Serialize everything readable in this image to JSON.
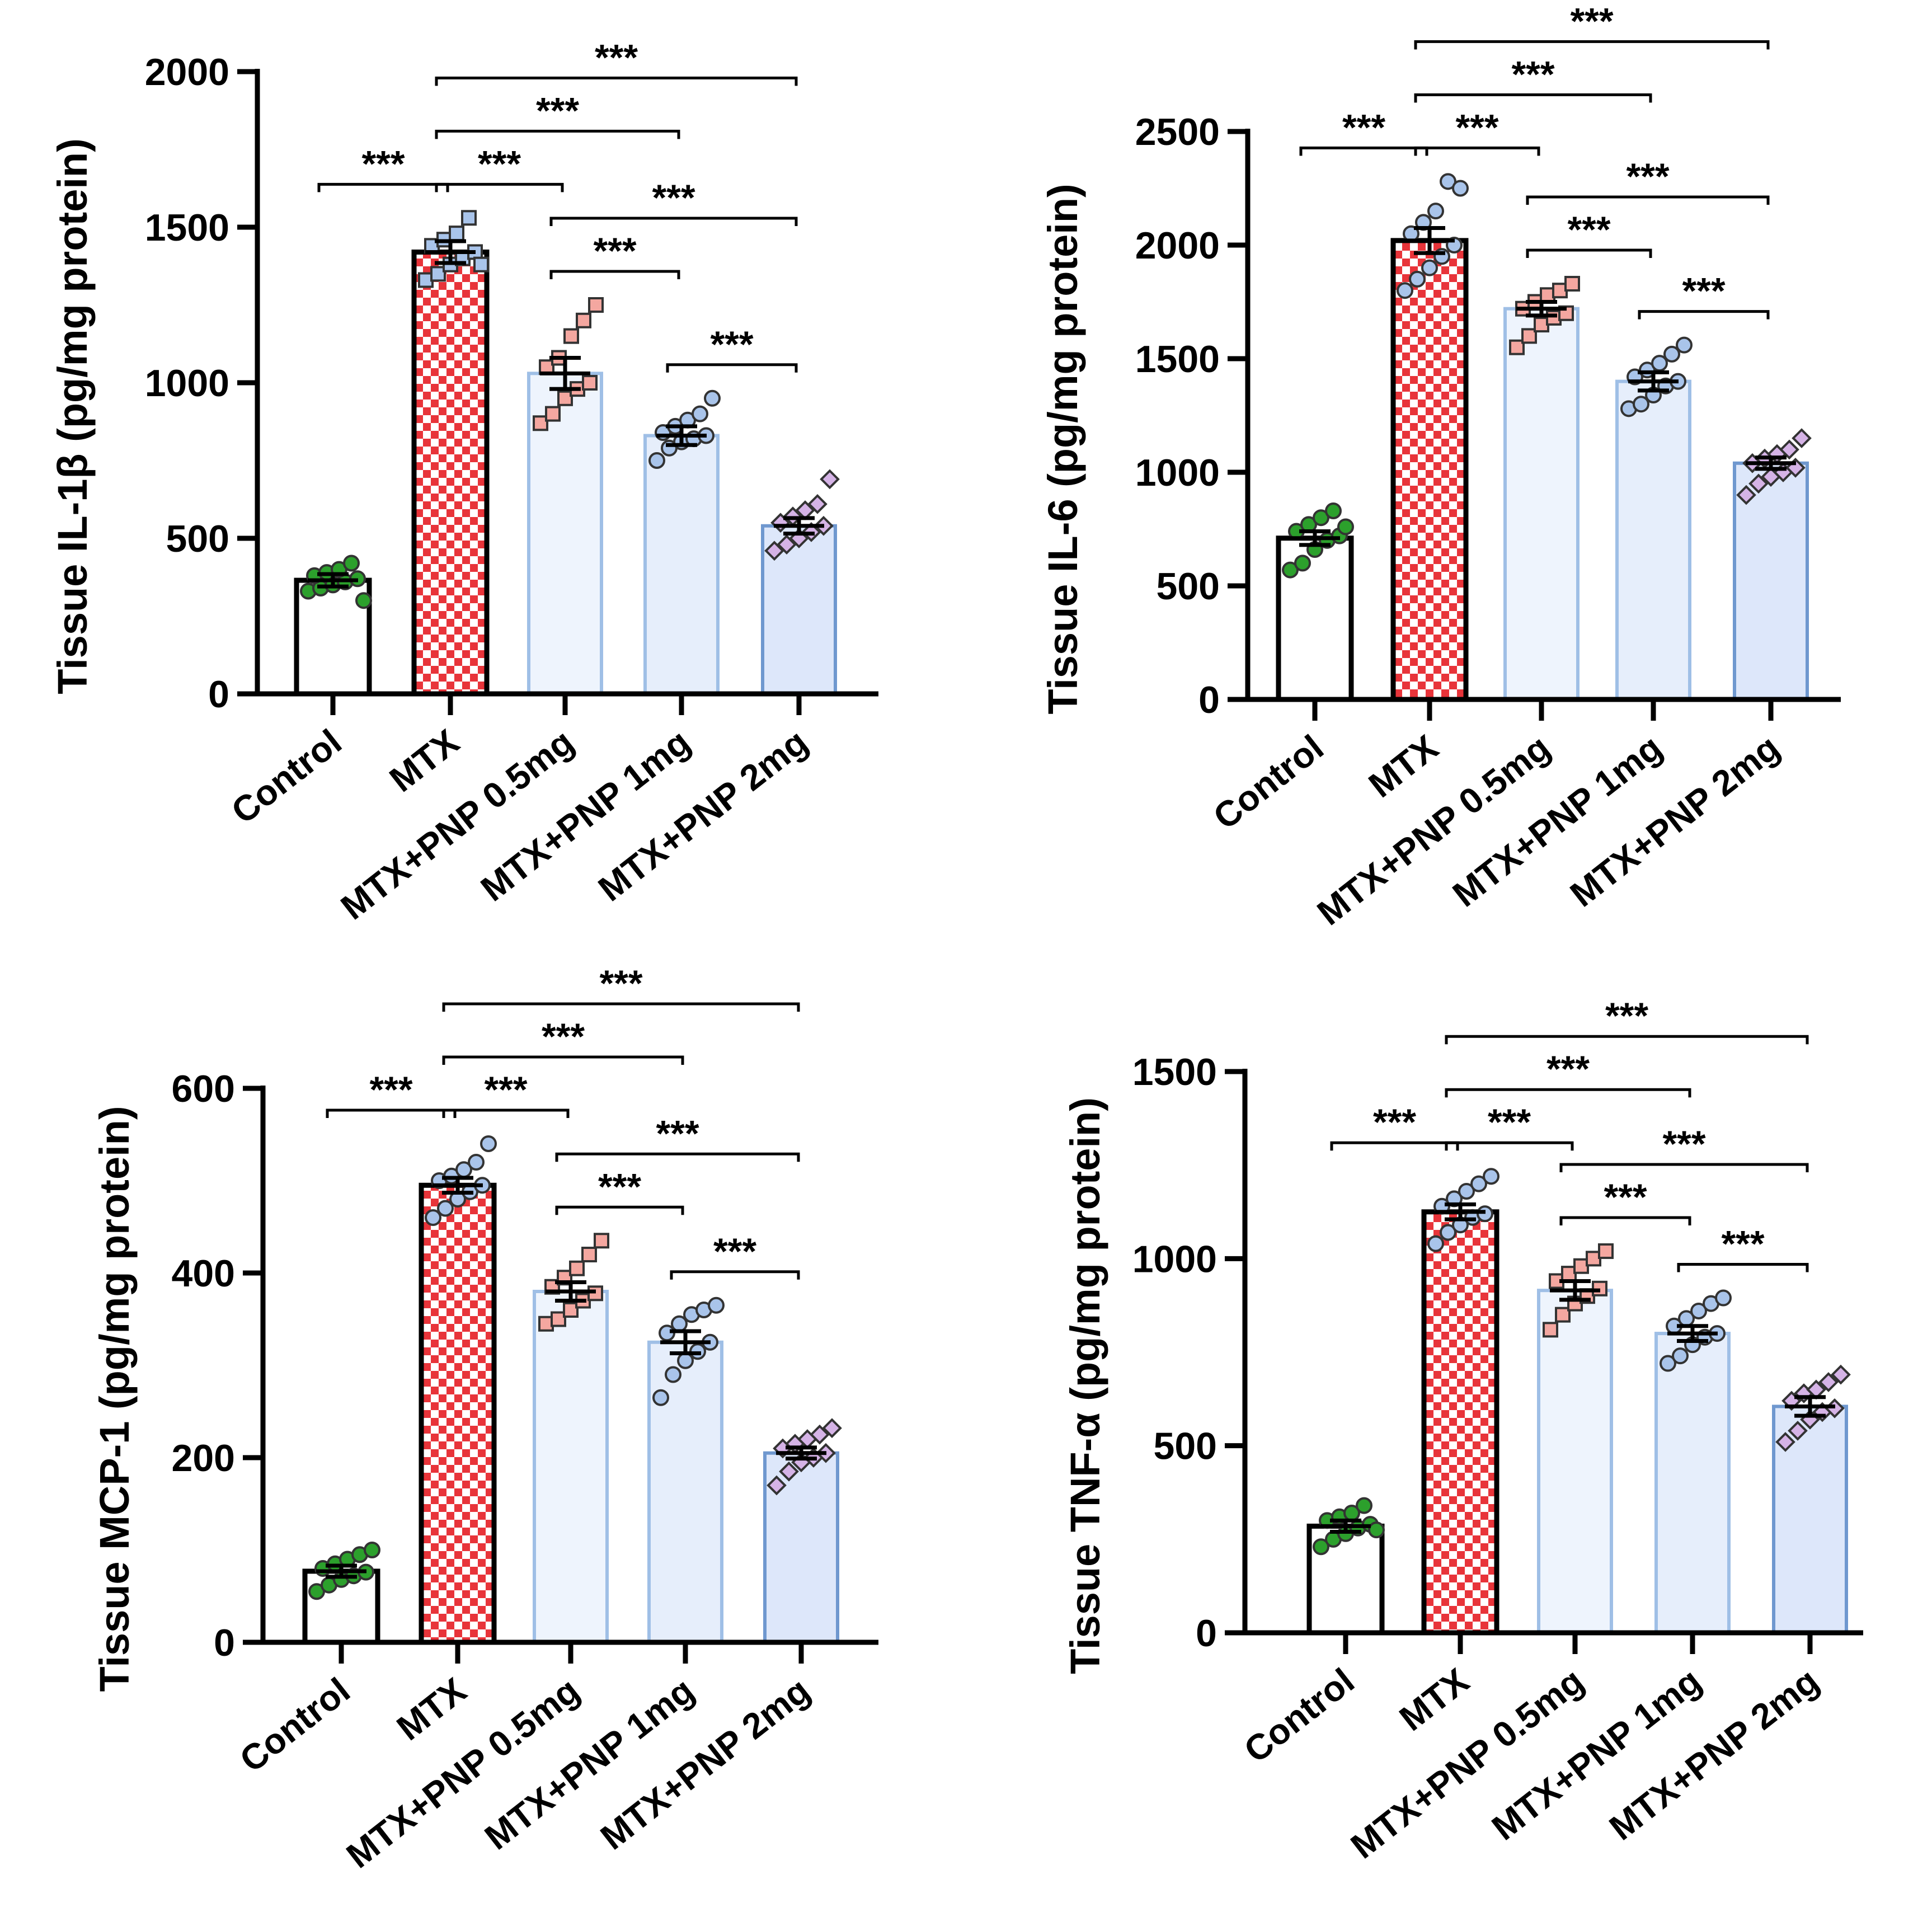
{
  "colors": {
    "control": "#ffffff",
    "mtx": "#e8343a",
    "pnp05": "#eef4fd",
    "pnp1": "#e6eefb",
    "pnp2": "#dde7fa",
    "pnp_edge": "#9fbfe6",
    "control_dot": "#2ca02c",
    "mtx_dot": "#a9c4ea",
    "pnp05_dot": "#f4a7a0",
    "pnp1_dot": "#a9c4ea",
    "pnp2_dot": "#d5b3e6"
  },
  "chart_data": [
    {
      "type": "bar",
      "title": "",
      "ylabel": "Tissue IL-1β (pg/mg protein)",
      "categories": [
        "Control",
        "MTX",
        "MTX+PNP 0.5mg",
        "MTX+PNP 1mg",
        "MTX+PNP 2mg"
      ],
      "values": [
        365,
        1420,
        1030,
        830,
        540
      ],
      "sem": [
        20,
        35,
        50,
        30,
        25
      ],
      "ylim": [
        0,
        2000
      ],
      "yticks": [
        0,
        500,
        1000,
        1500,
        2000
      ],
      "points": [
        [
          330,
          340,
          350,
          360,
          370,
          380,
          390,
          400,
          420,
          300
        ],
        [
          1330,
          1350,
          1380,
          1400,
          1420,
          1440,
          1460,
          1480,
          1530,
          1380
        ],
        [
          870,
          900,
          950,
          980,
          1000,
          1050,
          1080,
          1150,
          1200,
          1250
        ],
        [
          750,
          790,
          810,
          820,
          830,
          840,
          860,
          880,
          900,
          950
        ],
        [
          460,
          480,
          500,
          520,
          540,
          550,
          570,
          590,
          610,
          690
        ]
      ],
      "markers": [
        "circle",
        "square",
        "square",
        "circle",
        "diamond"
      ],
      "comparisons": [
        {
          "from": 0,
          "to": 1,
          "label": "***"
        },
        {
          "from": 1,
          "to": 2,
          "label": "***"
        },
        {
          "from": 1,
          "to": 3,
          "label": "***"
        },
        {
          "from": 1,
          "to": 4,
          "label": "***"
        },
        {
          "from": 2,
          "to": 3,
          "label": "***"
        },
        {
          "from": 2,
          "to": 4,
          "label": "***"
        },
        {
          "from": 3,
          "to": 4,
          "label": "***"
        }
      ]
    },
    {
      "type": "bar",
      "title": "",
      "ylabel": "Tissue IL-6 (pg/mg protein)",
      "categories": [
        "Control",
        "MTX",
        "MTX+PNP 0.5mg",
        "MTX+PNP 1mg",
        "MTX+PNP 2mg"
      ],
      "values": [
        710,
        2020,
        1720,
        1400,
        1040
      ],
      "sem": [
        30,
        55,
        30,
        40,
        25
      ],
      "ylim": [
        0,
        2500
      ],
      "yticks": [
        0,
        500,
        1000,
        1500,
        2000,
        2500
      ],
      "points": [
        [
          570,
          600,
          660,
          700,
          720,
          740,
          770,
          800,
          830,
          760
        ],
        [
          1800,
          1850,
          1900,
          1950,
          2000,
          2050,
          2100,
          2150,
          2280,
          2250
        ],
        [
          1550,
          1600,
          1650,
          1680,
          1700,
          1720,
          1750,
          1780,
          1800,
          1830
        ],
        [
          1280,
          1300,
          1340,
          1380,
          1400,
          1420,
          1450,
          1480,
          1520,
          1560
        ],
        [
          900,
          950,
          980,
          1000,
          1020,
          1040,
          1060,
          1080,
          1100,
          1150
        ]
      ],
      "markers": [
        "circle",
        "circle",
        "square",
        "circle",
        "diamond"
      ],
      "comparisons": [
        {
          "from": 0,
          "to": 1,
          "label": "***"
        },
        {
          "from": 1,
          "to": 2,
          "label": "***"
        },
        {
          "from": 1,
          "to": 3,
          "label": "***"
        },
        {
          "from": 1,
          "to": 4,
          "label": "***"
        },
        {
          "from": 2,
          "to": 3,
          "label": "***"
        },
        {
          "from": 2,
          "to": 4,
          "label": "***"
        },
        {
          "from": 3,
          "to": 4,
          "label": "***"
        }
      ]
    },
    {
      "type": "bar",
      "title": "",
      "ylabel": "Tissue MCP-1 (pg/mg protein)",
      "categories": [
        "Control",
        "MTX",
        "MTX+PNP 0.5mg",
        "MTX+PNP 1mg",
        "MTX+PNP 2mg"
      ],
      "values": [
        77,
        495,
        380,
        325,
        205
      ],
      "sem": [
        6,
        8,
        10,
        12,
        6
      ],
      "ylim": [
        0,
        600
      ],
      "yticks": [
        0,
        200,
        400,
        600
      ],
      "points": [
        [
          55,
          62,
          68,
          72,
          76,
          80,
          85,
          90,
          95,
          100
        ],
        [
          460,
          470,
          480,
          488,
          495,
          500,
          505,
          512,
          520,
          540
        ],
        [
          345,
          350,
          360,
          370,
          378,
          385,
          395,
          405,
          420,
          435
        ],
        [
          265,
          290,
          305,
          315,
          325,
          335,
          345,
          355,
          360,
          365
        ],
        [
          170,
          185,
          195,
          200,
          205,
          210,
          215,
          220,
          225,
          232
        ]
      ],
      "markers": [
        "circle",
        "circle",
        "square",
        "circle",
        "diamond"
      ],
      "comparisons": [
        {
          "from": 0,
          "to": 1,
          "label": "***"
        },
        {
          "from": 1,
          "to": 2,
          "label": "***"
        },
        {
          "from": 1,
          "to": 3,
          "label": "***"
        },
        {
          "from": 1,
          "to": 4,
          "label": "***"
        },
        {
          "from": 2,
          "to": 3,
          "label": "***"
        },
        {
          "from": 2,
          "to": 4,
          "label": "***"
        },
        {
          "from": 3,
          "to": 4,
          "label": "***"
        }
      ]
    },
    {
      "type": "bar",
      "title": "",
      "ylabel": "Tissue TNF-α (pg/mg protein)",
      "categories": [
        "Control",
        "MTX",
        "MTX+PNP 0.5mg",
        "MTX+PNP 1mg",
        "MTX+PNP 2mg"
      ],
      "values": [
        285,
        1125,
        915,
        800,
        605
      ],
      "sem": [
        15,
        20,
        25,
        20,
        25
      ],
      "ylim": [
        0,
        1500
      ],
      "yticks": [
        0,
        500,
        1000,
        1500
      ],
      "points": [
        [
          230,
          250,
          265,
          280,
          290,
          300,
          310,
          320,
          340,
          275
        ],
        [
          1040,
          1070,
          1090,
          1110,
          1120,
          1140,
          1160,
          1180,
          1200,
          1220
        ],
        [
          810,
          850,
          880,
          900,
          920,
          940,
          960,
          980,
          1000,
          1020
        ],
        [
          720,
          740,
          770,
          790,
          800,
          820,
          840,
          860,
          880,
          895
        ],
        [
          510,
          540,
          570,
          590,
          600,
          620,
          640,
          650,
          670,
          690
        ]
      ],
      "markers": [
        "circle",
        "circle",
        "square",
        "circle",
        "diamond"
      ],
      "comparisons": [
        {
          "from": 0,
          "to": 1,
          "label": "***"
        },
        {
          "from": 1,
          "to": 2,
          "label": "***"
        },
        {
          "from": 1,
          "to": 3,
          "label": "***"
        },
        {
          "from": 1,
          "to": 4,
          "label": "***"
        },
        {
          "from": 2,
          "to": 3,
          "label": "***"
        },
        {
          "from": 2,
          "to": 4,
          "label": "***"
        },
        {
          "from": 3,
          "to": 4,
          "label": "***"
        }
      ]
    }
  ]
}
